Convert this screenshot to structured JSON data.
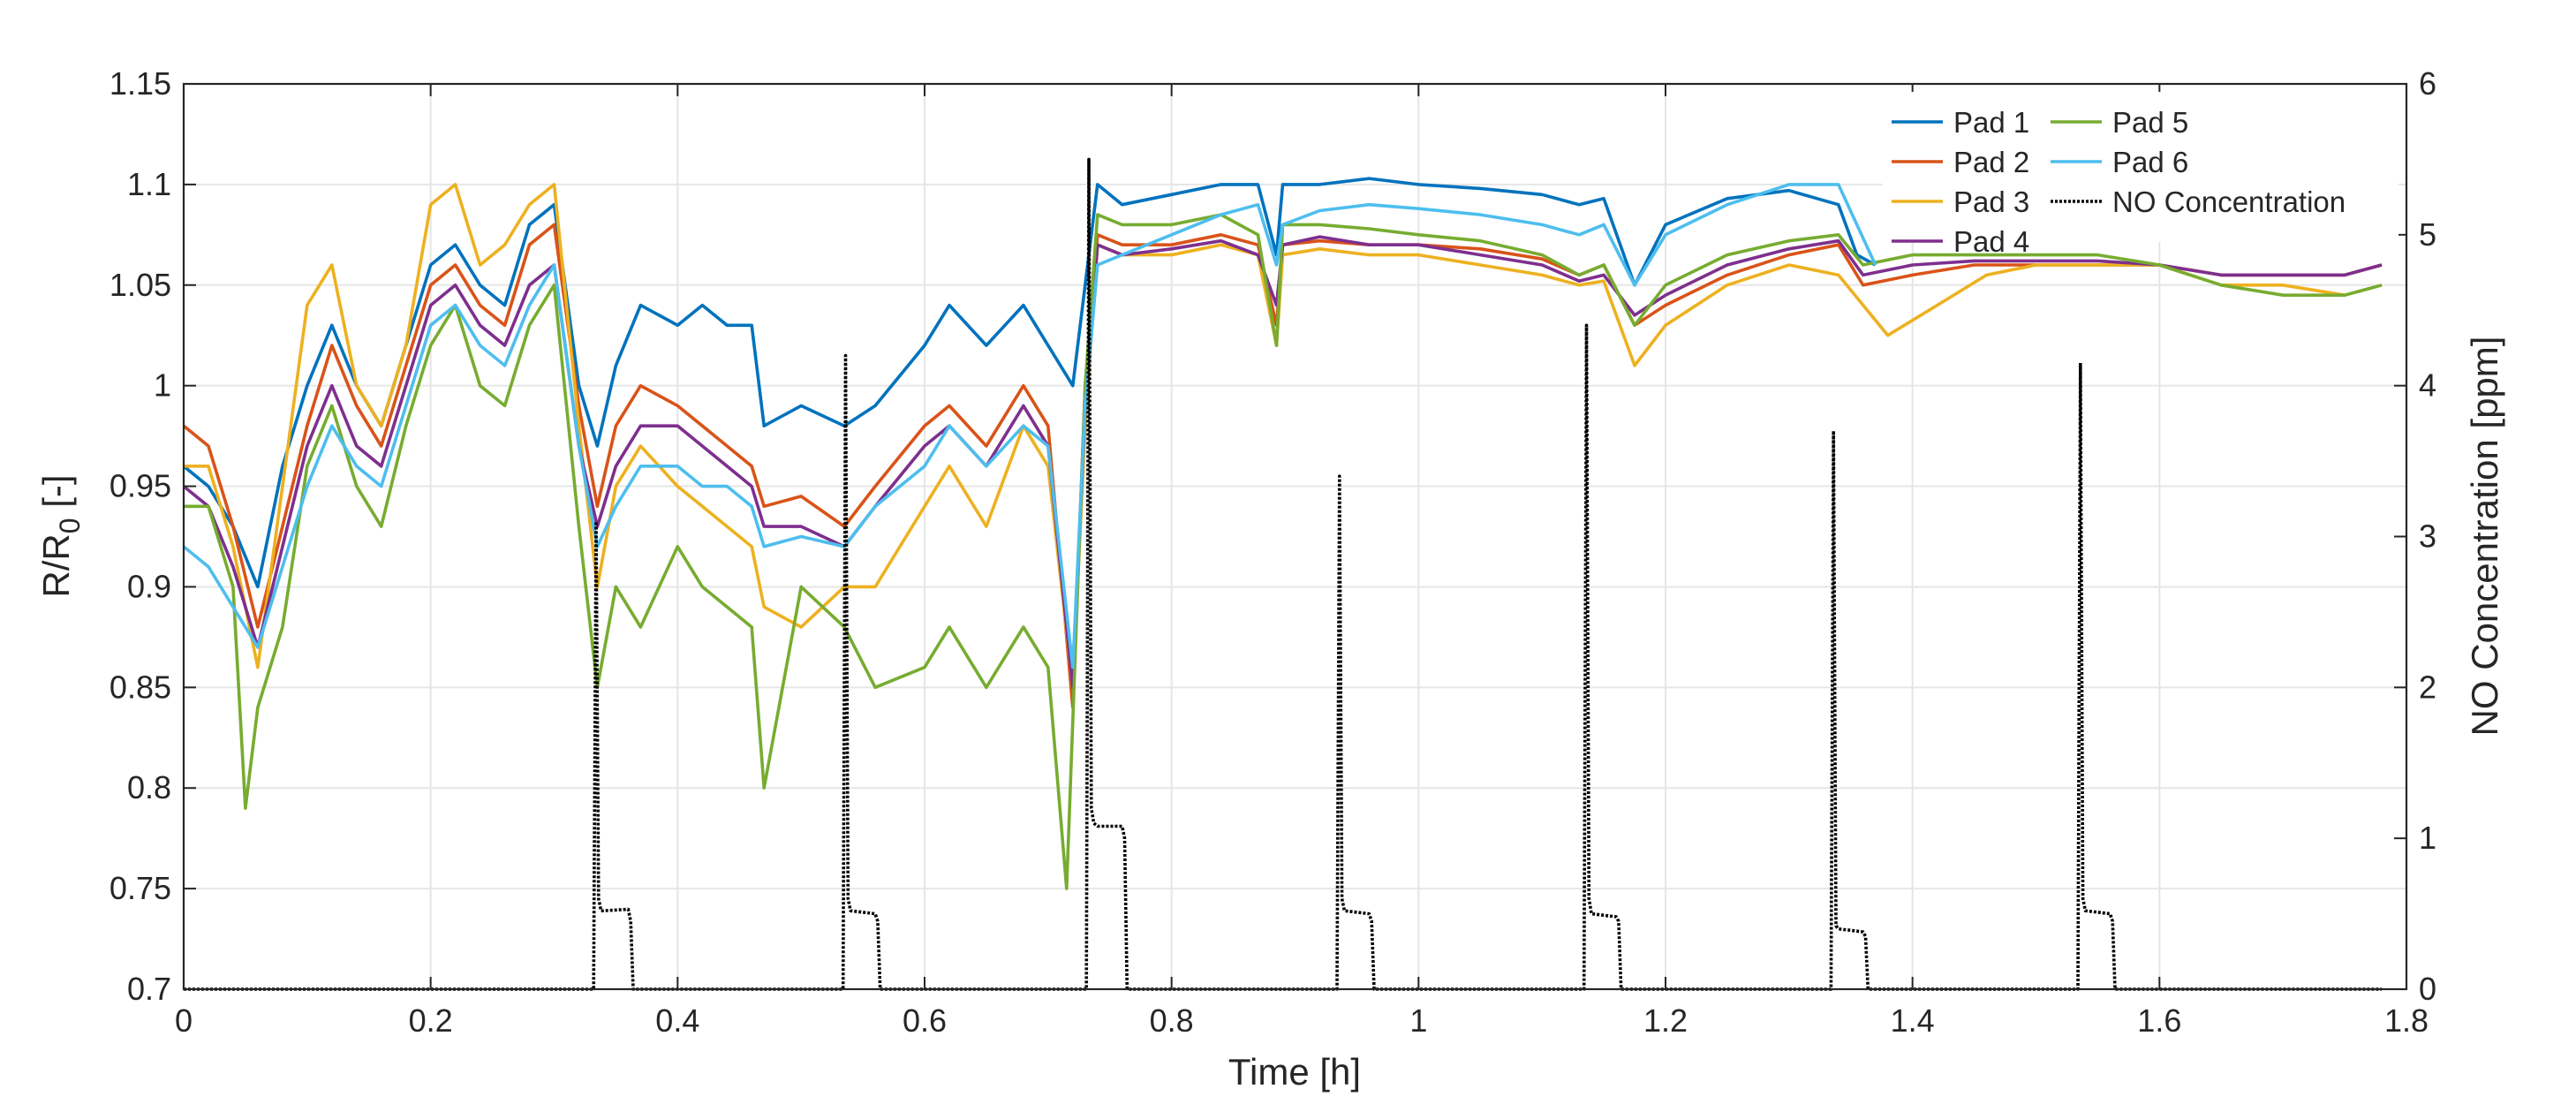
{
  "chart_data": {
    "type": "line",
    "title": "",
    "xlabel": "Time [h]",
    "ylabel_left_main": "R/R",
    "ylabel_left_sub": "0",
    "ylabel_left_suffix": " [-]",
    "ylabel_right": "NO Concentration [ppm]",
    "xlim": [
      0,
      1.8
    ],
    "ylim_left": [
      0.7,
      1.15
    ],
    "ylim_right": [
      0,
      6
    ],
    "grid": true,
    "legend_position": "top-right",
    "x_ticks": [
      "0",
      "0.2",
      "0.4",
      "0.6",
      "0.8",
      "1",
      "1.2",
      "1.4",
      "1.6",
      "1.8"
    ],
    "y_left_ticks": [
      "0.7",
      "0.75",
      "0.8",
      "0.85",
      "0.9",
      "0.95",
      "1",
      "1.05",
      "1.1",
      "1.15"
    ],
    "y_right_ticks": [
      "0",
      "1",
      "2",
      "3",
      "4",
      "5",
      "6"
    ],
    "series": [
      {
        "name": "Pad 1",
        "color": "#0072BD",
        "axis": "left",
        "x": [
          0,
          0.02,
          0.04,
          0.06,
          0.08,
          0.1,
          0.12,
          0.14,
          0.16,
          0.18,
          0.2,
          0.22,
          0.24,
          0.26,
          0.28,
          0.3,
          0.32,
          0.335,
          0.35,
          0.37,
          0.4,
          0.42,
          0.44,
          0.46,
          0.47,
          0.5,
          0.535,
          0.56,
          0.6,
          0.62,
          0.65,
          0.68,
          0.7,
          0.72,
          0.73,
          0.74,
          0.76,
          0.8,
          0.84,
          0.87,
          0.885,
          0.89,
          0.92,
          0.96,
          1.0,
          1.05,
          1.1,
          1.13,
          1.15,
          1.175,
          1.2,
          1.25,
          1.3,
          1.34,
          1.355,
          1.37
        ],
        "y": [
          0.96,
          0.95,
          0.93,
          0.9,
          0.96,
          1.0,
          1.03,
          1.0,
          0.98,
          1.02,
          1.06,
          1.07,
          1.05,
          1.04,
          1.08,
          1.09,
          1.0,
          0.97,
          1.01,
          1.04,
          1.03,
          1.04,
          1.03,
          1.03,
          0.98,
          0.99,
          0.98,
          0.99,
          1.02,
          1.04,
          1.02,
          1.04,
          1.02,
          1.0,
          1.05,
          1.1,
          1.09,
          1.095,
          1.1,
          1.1,
          1.065,
          1.1,
          1.1,
          1.103,
          1.1,
          1.098,
          1.095,
          1.09,
          1.093,
          1.05,
          1.08,
          1.093,
          1.097,
          1.09,
          1.065,
          1.06
        ]
      },
      {
        "name": "Pad 2",
        "color": "#D95319",
        "axis": "left",
        "x": [
          0,
          0.02,
          0.04,
          0.06,
          0.08,
          0.1,
          0.12,
          0.14,
          0.16,
          0.18,
          0.2,
          0.22,
          0.24,
          0.26,
          0.28,
          0.3,
          0.32,
          0.335,
          0.35,
          0.37,
          0.4,
          0.42,
          0.44,
          0.46,
          0.47,
          0.5,
          0.535,
          0.56,
          0.6,
          0.62,
          0.65,
          0.68,
          0.7,
          0.72,
          0.73,
          0.74,
          0.76,
          0.8,
          0.84,
          0.87,
          0.885,
          0.89,
          0.92,
          0.96,
          1.0,
          1.05,
          1.1,
          1.13,
          1.15,
          1.175,
          1.2,
          1.25,
          1.3,
          1.34,
          1.36,
          1.4,
          1.45,
          1.5,
          1.55,
          1.6,
          1.65,
          1.7,
          1.75,
          1.78
        ],
        "y": [
          0.98,
          0.97,
          0.93,
          0.88,
          0.93,
          0.98,
          1.02,
          0.99,
          0.97,
          1.01,
          1.05,
          1.06,
          1.04,
          1.03,
          1.07,
          1.08,
          0.99,
          0.94,
          0.98,
          1.0,
          0.99,
          0.98,
          0.97,
          0.96,
          0.94,
          0.945,
          0.93,
          0.95,
          0.98,
          0.99,
          0.97,
          1.0,
          0.98,
          0.84,
          1.0,
          1.075,
          1.07,
          1.07,
          1.075,
          1.07,
          1.03,
          1.07,
          1.072,
          1.07,
          1.07,
          1.068,
          1.063,
          1.055,
          1.06,
          1.03,
          1.04,
          1.055,
          1.065,
          1.07,
          1.05,
          1.055,
          1.06,
          1.06,
          1.06,
          1.06,
          1.055,
          1.055,
          1.055,
          1.06
        ]
      },
      {
        "name": "Pad 3",
        "color": "#EDB120",
        "axis": "left",
        "x": [
          0,
          0.02,
          0.04,
          0.06,
          0.08,
          0.1,
          0.12,
          0.14,
          0.16,
          0.18,
          0.2,
          0.22,
          0.24,
          0.26,
          0.28,
          0.3,
          0.32,
          0.335,
          0.35,
          0.37,
          0.4,
          0.42,
          0.44,
          0.46,
          0.47,
          0.5,
          0.535,
          0.56,
          0.6,
          0.62,
          0.65,
          0.68,
          0.7,
          0.72,
          0.73,
          0.74,
          0.76,
          0.8,
          0.84,
          0.87,
          0.885,
          0.89,
          0.92,
          0.96,
          1.0,
          1.05,
          1.1,
          1.13,
          1.15,
          1.175,
          1.2,
          1.25,
          1.3,
          1.34,
          1.38,
          1.42,
          1.46,
          1.5,
          1.55,
          1.6,
          1.65,
          1.7,
          1.75,
          1.78
        ],
        "y": [
          0.96,
          0.96,
          0.92,
          0.86,
          0.95,
          1.04,
          1.06,
          1.0,
          0.98,
          1.02,
          1.09,
          1.1,
          1.06,
          1.07,
          1.09,
          1.1,
          0.98,
          0.9,
          0.95,
          0.97,
          0.95,
          0.94,
          0.93,
          0.92,
          0.89,
          0.88,
          0.9,
          0.9,
          0.94,
          0.96,
          0.93,
          0.98,
          0.96,
          0.85,
          0.98,
          1.07,
          1.065,
          1.065,
          1.07,
          1.065,
          1.02,
          1.065,
          1.068,
          1.065,
          1.065,
          1.06,
          1.055,
          1.05,
          1.052,
          1.01,
          1.03,
          1.05,
          1.06,
          1.055,
          1.025,
          1.04,
          1.055,
          1.06,
          1.06,
          1.06,
          1.05,
          1.05,
          1.045,
          1.05
        ]
      },
      {
        "name": "Pad 4",
        "color": "#7E2F8E",
        "axis": "left",
        "x": [
          0,
          0.02,
          0.04,
          0.06,
          0.08,
          0.1,
          0.12,
          0.14,
          0.16,
          0.18,
          0.2,
          0.22,
          0.24,
          0.26,
          0.28,
          0.3,
          0.32,
          0.335,
          0.35,
          0.37,
          0.4,
          0.42,
          0.44,
          0.46,
          0.47,
          0.5,
          0.535,
          0.56,
          0.6,
          0.62,
          0.65,
          0.68,
          0.7,
          0.72,
          0.73,
          0.74,
          0.76,
          0.8,
          0.84,
          0.87,
          0.885,
          0.89,
          0.92,
          0.96,
          1.0,
          1.05,
          1.1,
          1.13,
          1.15,
          1.175,
          1.2,
          1.25,
          1.3,
          1.34,
          1.36,
          1.4,
          1.45,
          1.5,
          1.55,
          1.6,
          1.65,
          1.7,
          1.75,
          1.78
        ],
        "y": [
          0.95,
          0.94,
          0.91,
          0.87,
          0.92,
          0.97,
          1.0,
          0.97,
          0.96,
          1.0,
          1.04,
          1.05,
          1.03,
          1.02,
          1.05,
          1.06,
          0.97,
          0.93,
          0.96,
          0.98,
          0.98,
          0.97,
          0.96,
          0.95,
          0.93,
          0.93,
          0.92,
          0.94,
          0.97,
          0.98,
          0.96,
          0.99,
          0.97,
          0.85,
          0.99,
          1.07,
          1.065,
          1.068,
          1.072,
          1.065,
          1.04,
          1.07,
          1.074,
          1.07,
          1.07,
          1.065,
          1.06,
          1.052,
          1.055,
          1.035,
          1.045,
          1.06,
          1.068,
          1.072,
          1.055,
          1.06,
          1.062,
          1.062,
          1.062,
          1.06,
          1.055,
          1.055,
          1.055,
          1.06
        ]
      },
      {
        "name": "Pad 5",
        "color": "#77AC30",
        "axis": "left",
        "x": [
          0,
          0.02,
          0.04,
          0.05,
          0.06,
          0.08,
          0.1,
          0.12,
          0.14,
          0.16,
          0.18,
          0.2,
          0.22,
          0.24,
          0.26,
          0.28,
          0.3,
          0.32,
          0.335,
          0.35,
          0.37,
          0.4,
          0.42,
          0.44,
          0.46,
          0.47,
          0.5,
          0.535,
          0.56,
          0.6,
          0.62,
          0.65,
          0.68,
          0.7,
          0.715,
          0.73,
          0.74,
          0.76,
          0.8,
          0.84,
          0.87,
          0.885,
          0.89,
          0.92,
          0.96,
          1.0,
          1.05,
          1.1,
          1.13,
          1.15,
          1.175,
          1.2,
          1.25,
          1.3,
          1.34,
          1.36,
          1.4,
          1.45,
          1.5,
          1.55,
          1.6,
          1.65,
          1.7,
          1.75,
          1.78
        ],
        "y": [
          0.94,
          0.94,
          0.9,
          0.79,
          0.84,
          0.88,
          0.96,
          0.99,
          0.95,
          0.93,
          0.98,
          1.02,
          1.04,
          1.0,
          0.99,
          1.03,
          1.05,
          0.93,
          0.85,
          0.9,
          0.88,
          0.92,
          0.9,
          0.89,
          0.88,
          0.8,
          0.9,
          0.88,
          0.85,
          0.86,
          0.88,
          0.85,
          0.88,
          0.86,
          0.75,
          1.0,
          1.085,
          1.08,
          1.08,
          1.085,
          1.075,
          1.02,
          1.08,
          1.08,
          1.078,
          1.075,
          1.072,
          1.065,
          1.055,
          1.06,
          1.03,
          1.05,
          1.065,
          1.072,
          1.075,
          1.06,
          1.065,
          1.065,
          1.065,
          1.065,
          1.06,
          1.05,
          1.045,
          1.045,
          1.05
        ]
      },
      {
        "name": "Pad 6",
        "color": "#4DBEEE",
        "axis": "left",
        "x": [
          0,
          0.02,
          0.04,
          0.06,
          0.08,
          0.1,
          0.12,
          0.14,
          0.16,
          0.18,
          0.2,
          0.22,
          0.24,
          0.26,
          0.28,
          0.3,
          0.32,
          0.335,
          0.35,
          0.37,
          0.4,
          0.42,
          0.44,
          0.46,
          0.47,
          0.5,
          0.535,
          0.56,
          0.6,
          0.62,
          0.65,
          0.68,
          0.7,
          0.72,
          0.73,
          0.74,
          0.76,
          0.8,
          0.84,
          0.87,
          0.885,
          0.89,
          0.92,
          0.96,
          1.0,
          1.05,
          1.1,
          1.13,
          1.15,
          1.175,
          1.2,
          1.25,
          1.3,
          1.34,
          1.355,
          1.37
        ],
        "y": [
          0.92,
          0.91,
          0.89,
          0.87,
          0.91,
          0.95,
          0.98,
          0.96,
          0.95,
          0.99,
          1.03,
          1.04,
          1.02,
          1.01,
          1.04,
          1.06,
          0.97,
          0.92,
          0.94,
          0.96,
          0.96,
          0.95,
          0.95,
          0.94,
          0.92,
          0.925,
          0.92,
          0.94,
          0.96,
          0.98,
          0.96,
          0.98,
          0.97,
          0.86,
          0.99,
          1.06,
          1.065,
          1.075,
          1.085,
          1.09,
          1.06,
          1.08,
          1.087,
          1.09,
          1.088,
          1.085,
          1.08,
          1.075,
          1.08,
          1.05,
          1.075,
          1.09,
          1.1,
          1.1,
          1.08,
          1.06
        ]
      },
      {
        "name": "NO Concentration",
        "color": "#000000",
        "axis": "right",
        "dashed": true,
        "x": [
          0,
          0.332,
          0.334,
          0.336,
          0.338,
          0.34,
          0.36,
          0.362,
          0.364,
          0.534,
          0.536,
          0.538,
          0.54,
          0.56,
          0.562,
          0.564,
          0.731,
          0.733,
          0.735,
          0.737,
          0.74,
          0.76,
          0.762,
          0.764,
          0.934,
          0.936,
          0.938,
          0.94,
          0.96,
          0.962,
          0.964,
          1.134,
          1.136,
          1.138,
          1.14,
          1.16,
          1.162,
          1.164,
          1.334,
          1.336,
          1.338,
          1.34,
          1.36,
          1.362,
          1.364,
          1.534,
          1.536,
          1.538,
          1.54,
          1.56,
          1.562,
          1.564,
          1.78
        ],
        "y": [
          0,
          0,
          3.1,
          0.6,
          0.52,
          0.52,
          0.53,
          0.45,
          0,
          0,
          4.2,
          0.6,
          0.52,
          0.5,
          0.45,
          0,
          0,
          5.5,
          1.2,
          1.1,
          1.08,
          1.08,
          1.0,
          0,
          0,
          3.4,
          0.6,
          0.52,
          0.5,
          0.45,
          0,
          0,
          4.4,
          0.6,
          0.5,
          0.48,
          0.45,
          0,
          0,
          3.7,
          0.42,
          0.4,
          0.38,
          0.35,
          0,
          0,
          4.15,
          0.6,
          0.52,
          0.5,
          0.45,
          0,
          0
        ]
      }
    ]
  }
}
